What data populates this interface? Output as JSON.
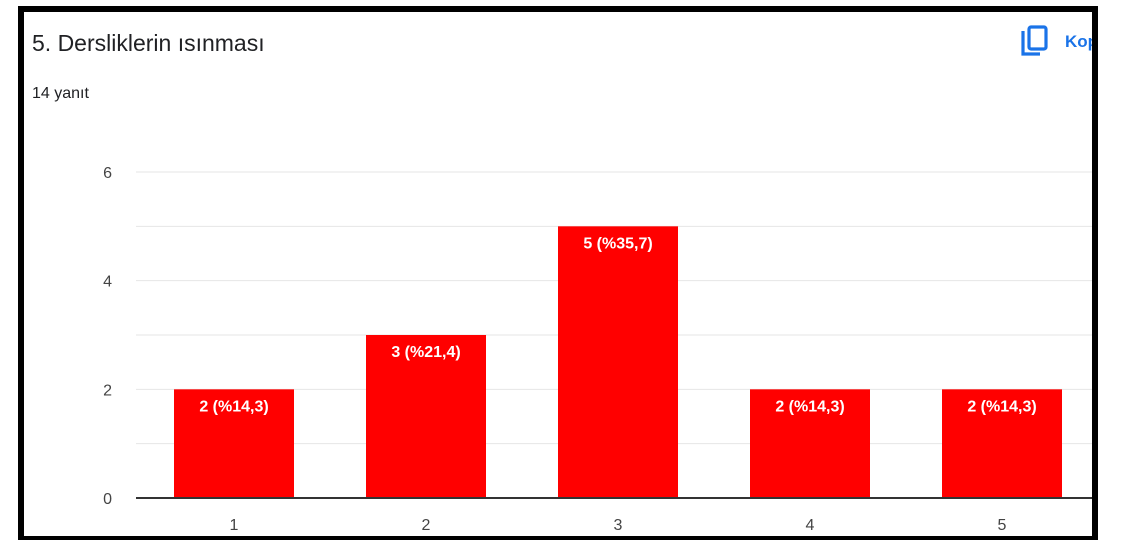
{
  "title": "5. Dersliklerin ısınması",
  "response_count": "14 yanıt",
  "copy_button": {
    "label": "Kop",
    "icon": "copy-icon"
  },
  "colors": {
    "bar": "#ff0000",
    "accent": "#1a73e8",
    "grid": "#e6e6e6",
    "axis": "#333333"
  },
  "chart_data": {
    "type": "bar",
    "title": "5. Dersliklerin ısınması",
    "categories": [
      "1",
      "2",
      "3",
      "4",
      "5"
    ],
    "values": [
      2,
      3,
      5,
      2,
      2
    ],
    "data_labels": [
      "2 (%14,3)",
      "3 (%21,4)",
      "5 (%35,7)",
      "2 (%14,3)",
      "2 (%14,3)"
    ],
    "xlabel": "",
    "ylabel": "",
    "ylim": [
      0,
      6
    ],
    "yticks": [
      "0",
      "2",
      "4",
      "6"
    ],
    "grid": true,
    "legend": "none"
  }
}
